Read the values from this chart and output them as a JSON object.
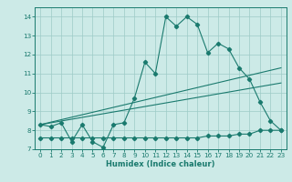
{
  "xlabel": "Humidex (Indice chaleur)",
  "x": [
    0,
    1,
    2,
    3,
    4,
    5,
    6,
    7,
    8,
    9,
    10,
    11,
    12,
    13,
    14,
    15,
    16,
    17,
    18,
    19,
    20,
    21,
    22,
    23
  ],
  "line1": [
    8.3,
    8.2,
    8.4,
    7.4,
    8.3,
    7.4,
    7.1,
    8.3,
    8.4,
    9.7,
    11.6,
    11.0,
    14.0,
    13.5,
    14.0,
    13.6,
    12.1,
    12.6,
    12.3,
    11.3,
    10.7,
    9.5,
    8.5,
    8.0
  ],
  "line2_x": [
    0,
    23
  ],
  "line2_y": [
    8.3,
    11.3
  ],
  "line3_x": [
    0,
    23
  ],
  "line3_y": [
    8.3,
    10.5
  ],
  "line4": [
    7.6,
    7.6,
    7.6,
    7.6,
    7.6,
    7.6,
    7.6,
    7.6,
    7.6,
    7.6,
    7.6,
    7.6,
    7.6,
    7.6,
    7.6,
    7.6,
    7.7,
    7.7,
    7.7,
    7.8,
    7.8,
    8.0,
    8.0,
    8.0
  ],
  "color": "#1a7a6e",
  "bg_color": "#cceae7",
  "grid_color": "#9ecbc7",
  "ylim": [
    7.0,
    14.5
  ],
  "xlim": [
    -0.5,
    23.5
  ],
  "yticks": [
    7,
    8,
    9,
    10,
    11,
    12,
    13,
    14
  ],
  "xticks": [
    0,
    1,
    2,
    3,
    4,
    5,
    6,
    7,
    8,
    9,
    10,
    11,
    12,
    13,
    14,
    15,
    16,
    17,
    18,
    19,
    20,
    21,
    22,
    23
  ],
  "xlabel_fontsize": 6.0,
  "tick_fontsize": 5.2,
  "marker": "D",
  "markersize": 2.2,
  "linewidth": 0.8
}
